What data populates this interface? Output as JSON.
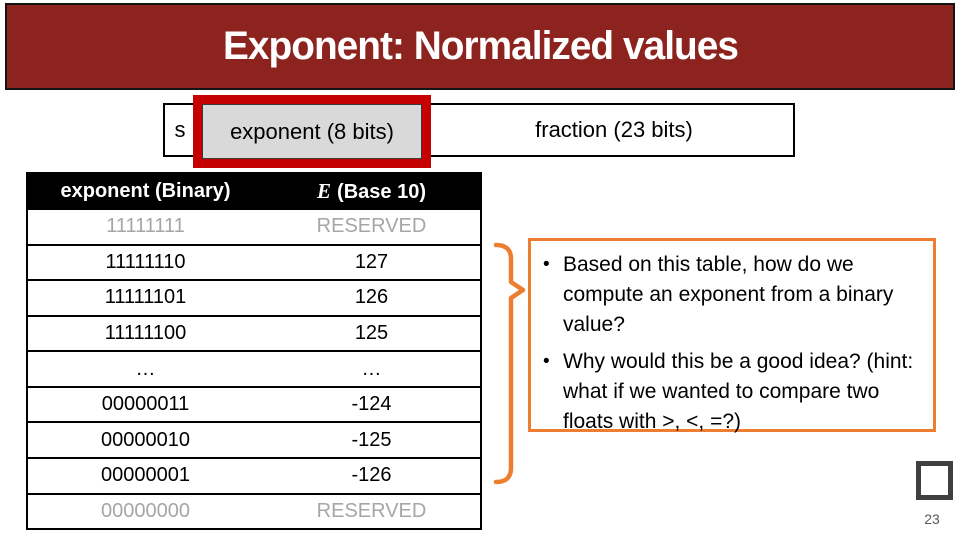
{
  "slide": {
    "title": "Exponent: Normalized values",
    "page_number": "23"
  },
  "bit_diagram": {
    "sign": "s",
    "exponent": "exponent (8 bits)",
    "fraction": "fraction (23 bits)"
  },
  "table": {
    "col_binary": "exponent (Binary)",
    "col_e_symbol": "E",
    "col_e_rest": "(Base 10)",
    "rows": [
      {
        "binary": "11111111",
        "e": "RESERVED",
        "reserved": true
      },
      {
        "binary": "11111110",
        "e": "127",
        "reserved": false
      },
      {
        "binary": "11111101",
        "e": "126",
        "reserved": false
      },
      {
        "binary": "11111100",
        "e": "125",
        "reserved": false
      },
      {
        "binary": "…",
        "e": "…",
        "reserved": false
      },
      {
        "binary": "00000011",
        "e": "-124",
        "reserved": false
      },
      {
        "binary": "00000010",
        "e": "-125",
        "reserved": false
      },
      {
        "binary": "00000001",
        "e": "-126",
        "reserved": false
      },
      {
        "binary": "00000000",
        "e": "RESERVED",
        "reserved": true
      }
    ]
  },
  "questions": {
    "bullet_marker": "•",
    "bullets": [
      "Based on this table, how do we compute an exponent from a binary value?",
      "Why would this be a good idea? (hint: what if we wanted to compare two floats with >, <, =?)"
    ]
  },
  "colors": {
    "header_maroon": "#8c231e",
    "highlight_red": "#c40000",
    "accent_orange": "#ed7d31",
    "reserved_gray": "#a6a6a6",
    "exponent_fill": "#d9d9d9"
  }
}
